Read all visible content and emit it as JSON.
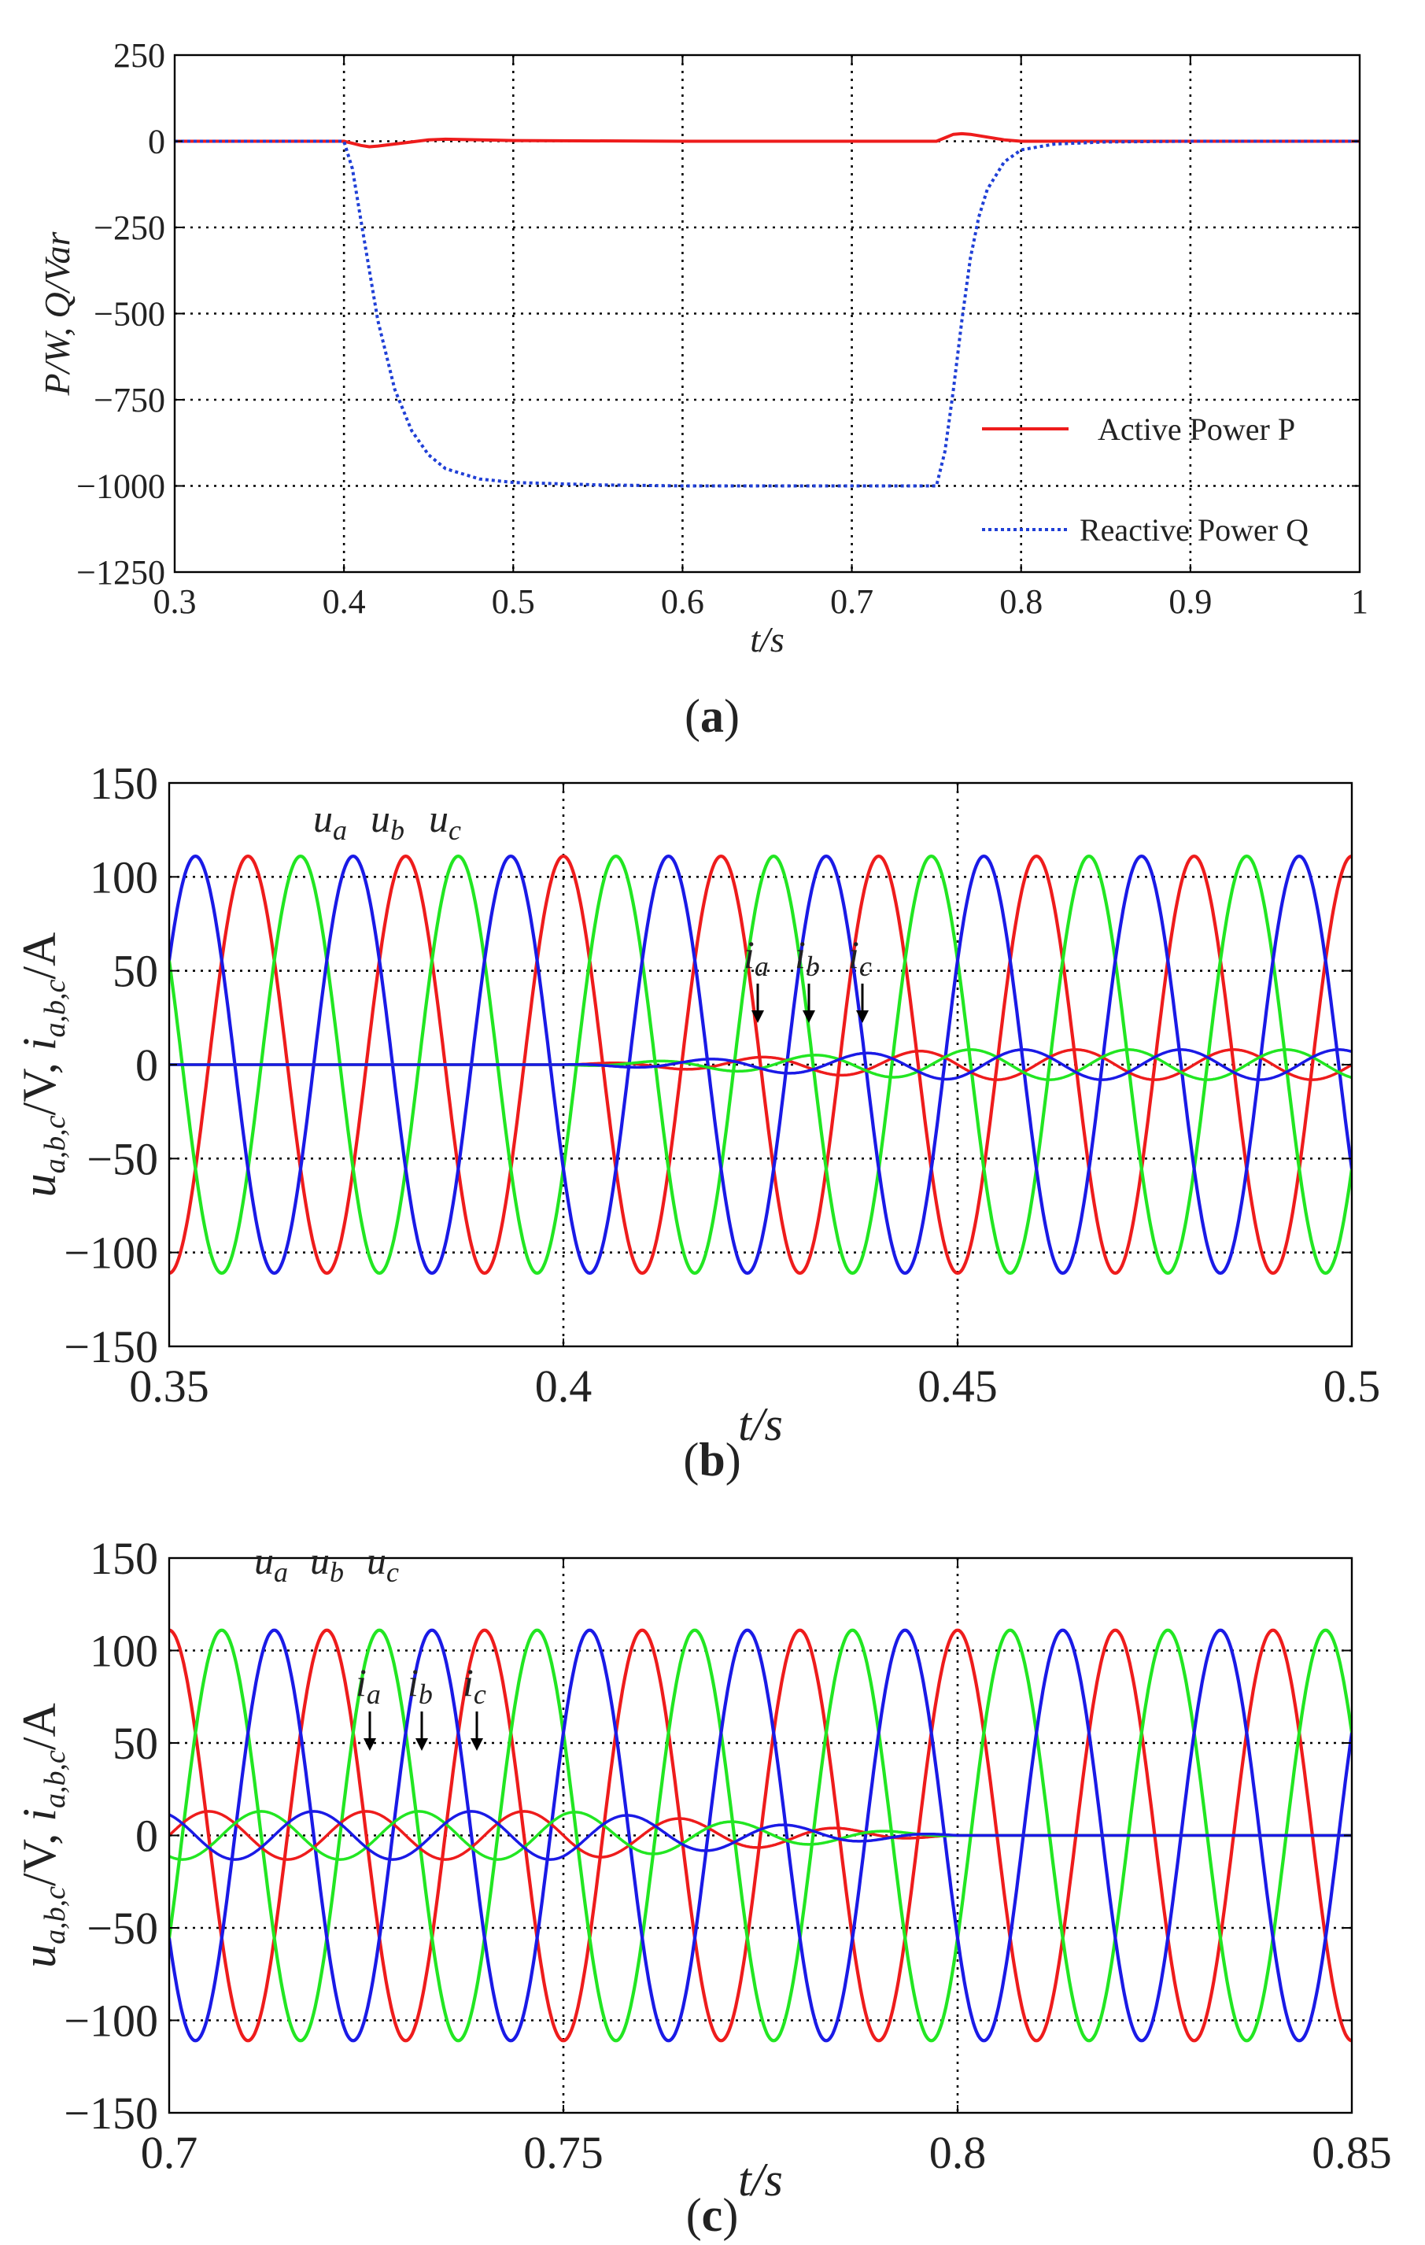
{
  "colors": {
    "red": "#ee1c1c",
    "green": "#22e622",
    "blue": "#1a1ae6",
    "blue_dotted": "#1f3fd6",
    "grid": "#000000",
    "axis": "#000000"
  },
  "chart_data": [
    {
      "panel": "a",
      "caption": "(a)",
      "type": "line",
      "xlabel": "t/s",
      "ylabel": "P/W, Q/Var",
      "xlim": [
        0.3,
        1.0
      ],
      "ylim": [
        -1250,
        250
      ],
      "xticks": [
        0.3,
        0.4,
        0.5,
        0.6,
        0.7,
        0.8,
        0.9,
        1.0
      ],
      "xtick_labels": [
        "0.3",
        "0.4",
        "0.5",
        "0.6",
        "0.7",
        "0.8",
        "0.9",
        "1"
      ],
      "yticks": [
        250,
        0,
        -250,
        -500,
        -750,
        -1000,
        -1250
      ],
      "ytick_labels": [
        "250",
        "0",
        "−250",
        "−500",
        "−750",
        "−1000",
        "−1250"
      ],
      "grid": true,
      "grid_style": "dotted",
      "legend_position": "bottom-right",
      "series": [
        {
          "name": "Active Power P",
          "color": "#ee1c1c",
          "style": "solid",
          "x": [
            0.3,
            0.4,
            0.405,
            0.41,
            0.415,
            0.42,
            0.43,
            0.44,
            0.45,
            0.46,
            0.5,
            0.6,
            0.75,
            0.755,
            0.76,
            0.765,
            0.77,
            0.78,
            0.79,
            0.8,
            0.85,
            1.0
          ],
          "y": [
            0,
            0,
            -6,
            -12,
            -16,
            -14,
            -8,
            -2,
            4,
            6,
            2,
            0,
            0,
            10,
            20,
            22,
            20,
            12,
            4,
            0,
            0,
            0
          ]
        },
        {
          "name": "Reactive Power Q",
          "color": "#1f3fd6",
          "style": "dotted",
          "x": [
            0.3,
            0.4,
            0.405,
            0.41,
            0.42,
            0.43,
            0.44,
            0.45,
            0.46,
            0.48,
            0.5,
            0.55,
            0.6,
            0.7,
            0.75,
            0.755,
            0.76,
            0.765,
            0.77,
            0.775,
            0.78,
            0.79,
            0.8,
            0.82,
            0.85,
            0.9,
            1.0
          ],
          "y": [
            0,
            0,
            -80,
            -230,
            -520,
            -720,
            -840,
            -910,
            -950,
            -980,
            -990,
            -997,
            -1000,
            -1000,
            -1000,
            -900,
            -720,
            -520,
            -340,
            -220,
            -140,
            -60,
            -25,
            -8,
            -2,
            0,
            0
          ]
        }
      ]
    },
    {
      "panel": "b",
      "caption": "(b)",
      "type": "line",
      "xlabel": "t/s",
      "ylabel": "u_{a,b,c}/V, i_{a,b,c}/A",
      "xlim": [
        0.35,
        0.5
      ],
      "ylim": [
        -150,
        150
      ],
      "xticks": [
        0.35,
        0.4,
        0.45,
        0.5
      ],
      "xtick_labels": [
        "0.35",
        "0.4",
        "0.45",
        "0.5"
      ],
      "yticks": [
        150,
        100,
        50,
        0,
        -50,
        -100,
        -150
      ],
      "ytick_labels": [
        "150",
        "100",
        "50",
        "0",
        "−50",
        "−100",
        "−150"
      ],
      "grid": true,
      "grid_style": "dotted",
      "frequency_hz": 50,
      "voltage_amplitude_v": 111,
      "current_amplitude_a": [
        0,
        0,
        8
      ],
      "current_time": [
        0.35,
        0.4,
        0.45
      ],
      "voltage_labels": [
        "u",
        "u",
        "u"
      ],
      "voltage_subscripts": [
        "a",
        "b",
        "c"
      ],
      "current_labels": [
        "i",
        "i",
        "i"
      ],
      "current_subscripts": [
        "a",
        "b",
        "c"
      ],
      "series": [
        {
          "name": "u_a",
          "color": "#ee1c1c",
          "amplitude": 111,
          "phase_deg": 0
        },
        {
          "name": "u_b",
          "color": "#22e622",
          "amplitude": 111,
          "phase_deg": -120
        },
        {
          "name": "u_c",
          "color": "#1a1ae6",
          "amplitude": 111,
          "phase_deg": 120
        },
        {
          "name": "i_a",
          "color": "#ee1c1c",
          "amplitude": 8,
          "phase_deg": -90
        },
        {
          "name": "i_b",
          "color": "#22e622",
          "amplitude": 8,
          "phase_deg": -210
        },
        {
          "name": "i_c",
          "color": "#1a1ae6",
          "amplitude": 8,
          "phase_deg": 30
        }
      ]
    },
    {
      "panel": "c",
      "caption": "(c)",
      "type": "line",
      "xlabel": "t/s",
      "ylabel": "u_{a,b,c}/V, i_{a,b,c}/A",
      "xlim": [
        0.7,
        0.85
      ],
      "ylim": [
        -150,
        150
      ],
      "xticks": [
        0.7,
        0.75,
        0.8,
        0.85
      ],
      "xtick_labels": [
        "0.7",
        "0.75",
        "0.8",
        "0.85"
      ],
      "yticks": [
        150,
        100,
        50,
        0,
        -50,
        -100,
        -150
      ],
      "ytick_labels": [
        "150",
        "100",
        "50",
        "0",
        "−50",
        "−100",
        "−150"
      ],
      "grid": true,
      "grid_style": "dotted",
      "frequency_hz": 50,
      "voltage_amplitude_v": 111,
      "current_amplitude_a": [
        13,
        13,
        0,
        0
      ],
      "current_time": [
        0.7,
        0.75,
        0.8,
        0.85
      ],
      "voltage_labels": [
        "u",
        "u",
        "u"
      ],
      "voltage_subscripts": [
        "a",
        "b",
        "c"
      ],
      "current_labels": [
        "i",
        "i",
        "i"
      ],
      "current_subscripts": [
        "a",
        "b",
        "c"
      ],
      "series": [
        {
          "name": "u_a",
          "color": "#ee1c1c",
          "amplitude": 111,
          "phase_deg": 0
        },
        {
          "name": "u_b",
          "color": "#22e622",
          "amplitude": 111,
          "phase_deg": -120
        },
        {
          "name": "u_c",
          "color": "#1a1ae6",
          "amplitude": 111,
          "phase_deg": 120
        },
        {
          "name": "i_a",
          "color": "#ee1c1c",
          "amplitude": 13,
          "phase_deg": -90
        },
        {
          "name": "i_b",
          "color": "#22e622",
          "amplitude": 13,
          "phase_deg": -210
        },
        {
          "name": "i_c",
          "color": "#1a1ae6",
          "amplitude": 13,
          "phase_deg": 30
        }
      ]
    }
  ]
}
